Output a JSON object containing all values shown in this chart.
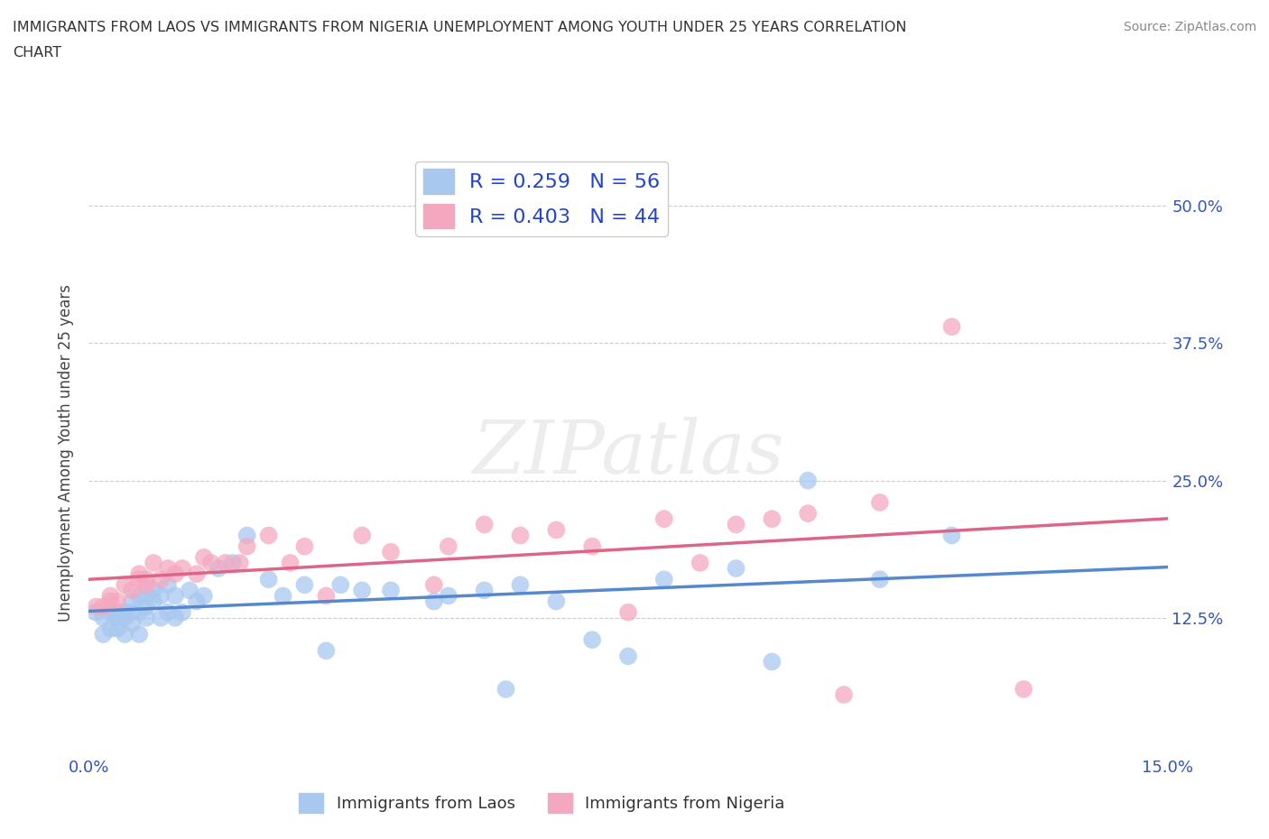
{
  "title_line1": "IMMIGRANTS FROM LAOS VS IMMIGRANTS FROM NIGERIA UNEMPLOYMENT AMONG YOUTH UNDER 25 YEARS CORRELATION",
  "title_line2": "CHART",
  "source": "Source: ZipAtlas.com",
  "ylabel": "Unemployment Among Youth under 25 years",
  "xlim": [
    0.0,
    0.15
  ],
  "ylim": [
    0.0,
    0.55
  ],
  "xticks": [
    0.0,
    0.05,
    0.1,
    0.15
  ],
  "xticklabels": [
    "0.0%",
    "",
    "",
    "15.0%"
  ],
  "yticks": [
    0.0,
    0.125,
    0.25,
    0.375,
    0.5
  ],
  "yticklabels": [
    "",
    "12.5%",
    "25.0%",
    "37.5%",
    "50.0%"
  ],
  "laos_R": 0.259,
  "laos_N": 56,
  "nigeria_R": 0.403,
  "nigeria_N": 44,
  "laos_color": "#a8c8f0",
  "nigeria_color": "#f4a8c0",
  "laos_line_color": "#5588cc",
  "nigeria_line_color": "#dd6688",
  "watermark_text": "ZIPatlas",
  "legend_label_color": "#2244cc",
  "laos_x": [
    0.001,
    0.002,
    0.002,
    0.003,
    0.003,
    0.004,
    0.004,
    0.004,
    0.005,
    0.005,
    0.005,
    0.006,
    0.006,
    0.006,
    0.007,
    0.007,
    0.007,
    0.008,
    0.008,
    0.008,
    0.009,
    0.009,
    0.01,
    0.01,
    0.011,
    0.011,
    0.012,
    0.012,
    0.013,
    0.014,
    0.015,
    0.016,
    0.018,
    0.02,
    0.022,
    0.025,
    0.027,
    0.03,
    0.033,
    0.035,
    0.038,
    0.042,
    0.048,
    0.05,
    0.055,
    0.058,
    0.06,
    0.065,
    0.07,
    0.075,
    0.08,
    0.09,
    0.095,
    0.1,
    0.11,
    0.12
  ],
  "laos_y": [
    0.13,
    0.125,
    0.11,
    0.13,
    0.115,
    0.125,
    0.13,
    0.115,
    0.13,
    0.125,
    0.11,
    0.13,
    0.14,
    0.12,
    0.145,
    0.13,
    0.11,
    0.145,
    0.135,
    0.125,
    0.15,
    0.14,
    0.145,
    0.125,
    0.155,
    0.13,
    0.125,
    0.145,
    0.13,
    0.15,
    0.14,
    0.145,
    0.17,
    0.175,
    0.2,
    0.16,
    0.145,
    0.155,
    0.095,
    0.155,
    0.15,
    0.15,
    0.14,
    0.145,
    0.15,
    0.06,
    0.155,
    0.14,
    0.105,
    0.09,
    0.16,
    0.17,
    0.085,
    0.25,
    0.16,
    0.2
  ],
  "nigeria_x": [
    0.001,
    0.002,
    0.003,
    0.003,
    0.004,
    0.005,
    0.006,
    0.007,
    0.007,
    0.008,
    0.008,
    0.009,
    0.01,
    0.011,
    0.012,
    0.013,
    0.015,
    0.016,
    0.017,
    0.019,
    0.021,
    0.022,
    0.025,
    0.028,
    0.03,
    0.033,
    0.038,
    0.042,
    0.048,
    0.05,
    0.055,
    0.06,
    0.065,
    0.07,
    0.075,
    0.08,
    0.085,
    0.09,
    0.095,
    0.1,
    0.105,
    0.11,
    0.12,
    0.13
  ],
  "nigeria_y": [
    0.135,
    0.135,
    0.14,
    0.145,
    0.14,
    0.155,
    0.15,
    0.16,
    0.165,
    0.155,
    0.16,
    0.175,
    0.16,
    0.17,
    0.165,
    0.17,
    0.165,
    0.18,
    0.175,
    0.175,
    0.175,
    0.19,
    0.2,
    0.175,
    0.19,
    0.145,
    0.2,
    0.185,
    0.155,
    0.19,
    0.21,
    0.2,
    0.205,
    0.19,
    0.13,
    0.215,
    0.175,
    0.21,
    0.215,
    0.22,
    0.055,
    0.23,
    0.39,
    0.06
  ]
}
